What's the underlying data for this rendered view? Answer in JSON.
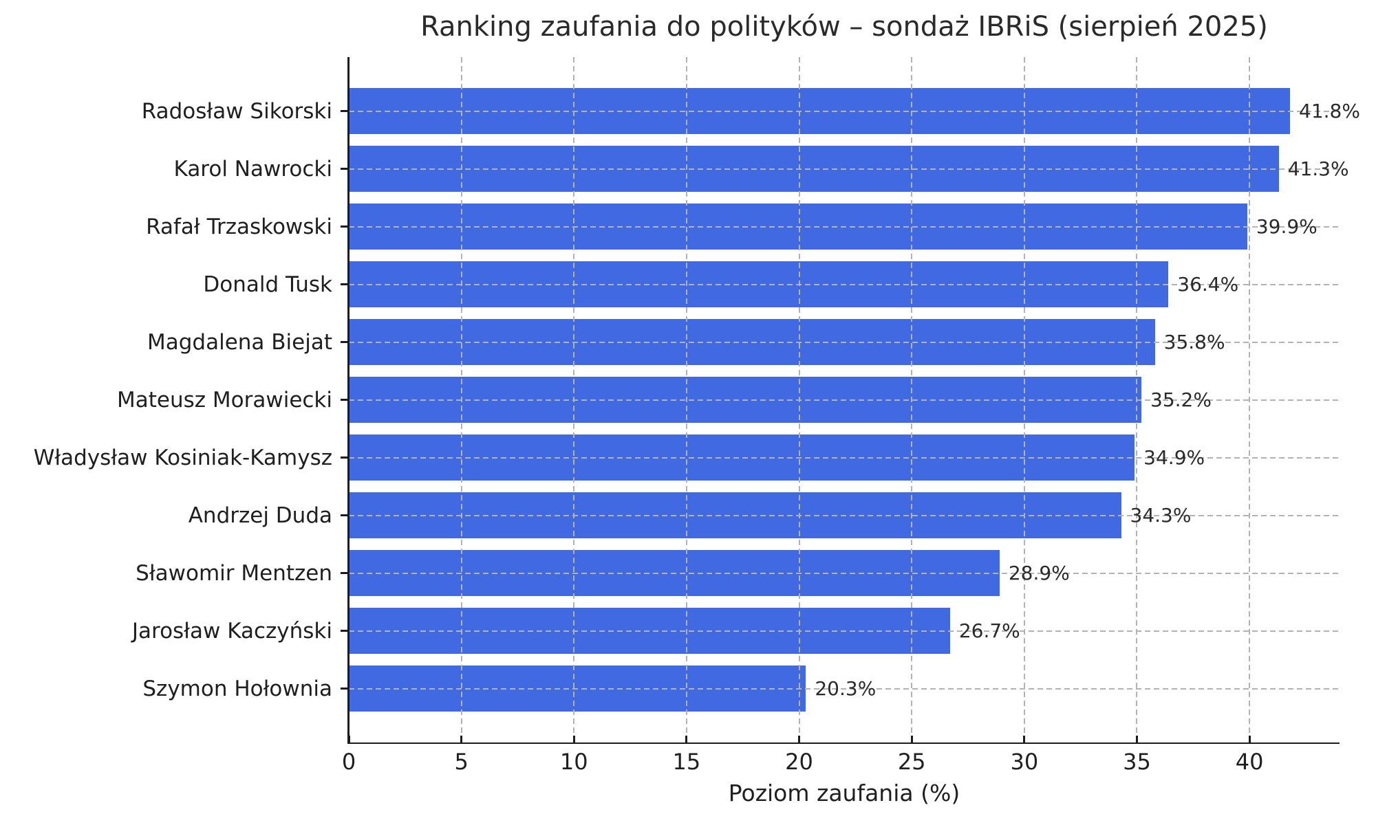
{
  "chart_data": {
    "type": "bar",
    "orientation": "horizontal",
    "title": "Ranking zaufania do polityków – sondaż IBRiS (sierpień 2025)",
    "xlabel": "Poziom zaufania (%)",
    "ylabel": "",
    "categories": [
      "Radosław Sikorski",
      "Karol Nawrocki",
      "Rafał Trzaskowski",
      "Donald Tusk",
      "Magdalena Biejat",
      "Mateusz Morawiecki",
      "Władysław Kosiniak-Kamysz",
      "Andrzej Duda",
      "Sławomir Mentzen",
      "Jarosław Kaczyński",
      "Szymon Hołownia"
    ],
    "values": [
      41.8,
      41.3,
      39.9,
      36.4,
      35.8,
      35.2,
      34.9,
      34.3,
      28.9,
      26.7,
      20.3
    ],
    "value_labels": [
      "41.8%",
      "41.3%",
      "39.9%",
      "36.4%",
      "35.8%",
      "35.2%",
      "34.9%",
      "34.3%",
      "28.9%",
      "26.7%",
      "20.3%"
    ],
    "x_ticks": [
      0,
      5,
      10,
      15,
      20,
      25,
      30,
      35,
      40
    ],
    "xlim": [
      0,
      44
    ],
    "grid": true,
    "grid_style": "dashed",
    "legend": false,
    "colors": {
      "bar": "#4169E1",
      "grid": "#b3b3b3",
      "spine": "#1c1c1c",
      "text": "#1f1f1f",
      "background": "#ffffff"
    }
  }
}
